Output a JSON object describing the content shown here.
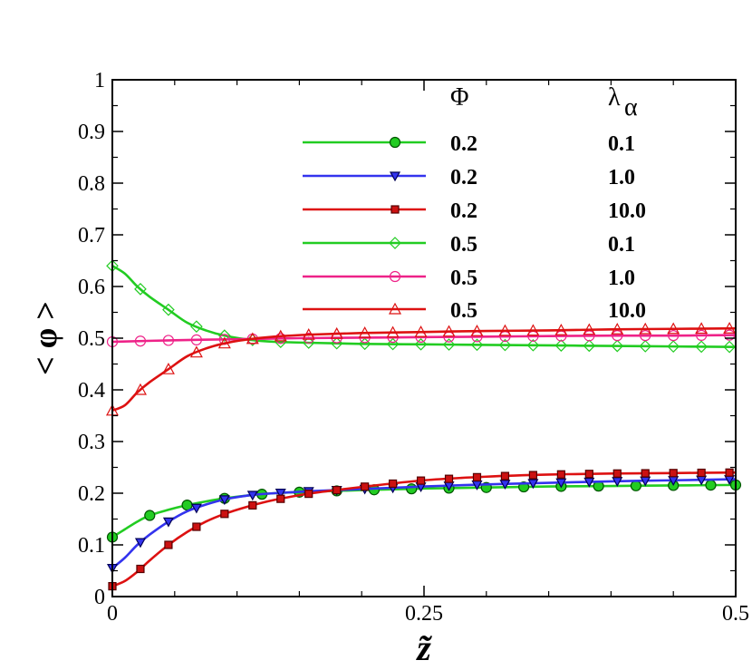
{
  "chart_data": {
    "type": "line",
    "title": "",
    "xlabel": "z̃",
    "ylabel": "< φ >",
    "xlim": [
      0,
      0.5
    ],
    "ylim": [
      0,
      1
    ],
    "xticks": [
      0,
      0.25,
      0.5
    ],
    "xtick_labels": [
      "0",
      "0.25",
      "0.5"
    ],
    "yticks": [
      0,
      0.1,
      0.2,
      0.3,
      0.4,
      0.5,
      0.6,
      0.7,
      0.8,
      0.9,
      1
    ],
    "ytick_labels": [
      "0",
      "0.1",
      "0.2",
      "0.3",
      "0.4",
      "0.5",
      "0.6",
      "0.7",
      "0.8",
      "0.9",
      "1"
    ],
    "legend": {
      "position": "top-right",
      "header_phi": "Φ",
      "header_lambda": "λ",
      "header_lambda_sub": "α"
    },
    "series": [
      {
        "name": "Φ=0.2, λα=0.1",
        "phi": "0.2",
        "lambda": "0.1",
        "color": "#22cc22",
        "marker": "circle",
        "marker_fill": "#22cc22",
        "marker_stroke": "#005500",
        "x": [
          0,
          0.01,
          0.02,
          0.03,
          0.045,
          0.06,
          0.075,
          0.09,
          0.11,
          0.13,
          0.16,
          0.2,
          0.25,
          0.3,
          0.35,
          0.4,
          0.45,
          0.5
        ],
        "y": [
          0.115,
          0.13,
          0.145,
          0.157,
          0.168,
          0.177,
          0.184,
          0.19,
          0.196,
          0.2,
          0.203,
          0.206,
          0.209,
          0.211,
          0.213,
          0.214,
          0.215,
          0.216
        ],
        "marker_x": [
          0,
          0.03,
          0.06,
          0.09,
          0.12,
          0.15,
          0.18,
          0.21,
          0.24,
          0.27,
          0.3,
          0.33,
          0.36,
          0.39,
          0.42,
          0.45,
          0.48,
          0.5
        ]
      },
      {
        "name": "Φ=0.2, λα=1.0",
        "phi": "0.2",
        "lambda": "1.0",
        "color": "#3333ee",
        "marker": "triangle-down",
        "marker_fill": "#3333ee",
        "marker_stroke": "#000055",
        "x": [
          0,
          0.01,
          0.02,
          0.03,
          0.045,
          0.06,
          0.075,
          0.09,
          0.11,
          0.13,
          0.16,
          0.2,
          0.25,
          0.3,
          0.35,
          0.4,
          0.45,
          0.5
        ],
        "y": [
          0.055,
          0.075,
          0.1,
          0.12,
          0.145,
          0.165,
          0.178,
          0.188,
          0.196,
          0.2,
          0.204,
          0.208,
          0.213,
          0.217,
          0.22,
          0.223,
          0.225,
          0.227
        ],
        "marker_x": [
          0,
          0.0225,
          0.045,
          0.0675,
          0.09,
          0.1125,
          0.135,
          0.1575,
          0.18,
          0.2025,
          0.225,
          0.2475,
          0.27,
          0.2925,
          0.315,
          0.3375,
          0.36,
          0.3825,
          0.405,
          0.4275,
          0.45,
          0.4725,
          0.495
        ]
      },
      {
        "name": "Φ=0.2, λα=10.0",
        "phi": "0.2",
        "lambda": "10.0",
        "color": "#dd1111",
        "marker": "square",
        "marker_fill": "#cc1111",
        "marker_stroke": "#550000",
        "x": [
          0,
          0.01,
          0.02,
          0.03,
          0.045,
          0.06,
          0.075,
          0.09,
          0.11,
          0.13,
          0.16,
          0.2,
          0.25,
          0.3,
          0.35,
          0.4,
          0.45,
          0.5
        ],
        "y": [
          0.02,
          0.03,
          0.048,
          0.07,
          0.1,
          0.125,
          0.145,
          0.16,
          0.175,
          0.187,
          0.2,
          0.212,
          0.225,
          0.232,
          0.236,
          0.238,
          0.239,
          0.24
        ],
        "marker_x": [
          0,
          0.0225,
          0.045,
          0.0675,
          0.09,
          0.1125,
          0.135,
          0.1575,
          0.18,
          0.2025,
          0.225,
          0.2475,
          0.27,
          0.2925,
          0.315,
          0.3375,
          0.36,
          0.3825,
          0.405,
          0.4275,
          0.45,
          0.4725,
          0.495
        ]
      },
      {
        "name": "Φ=0.5, λα=0.1",
        "phi": "0.5",
        "lambda": "0.1",
        "color": "#22cc22",
        "marker": "diamond",
        "marker_fill": "none",
        "marker_stroke": "#22cc22",
        "x": [
          0,
          0.01,
          0.02,
          0.03,
          0.045,
          0.06,
          0.075,
          0.09,
          0.11,
          0.13,
          0.16,
          0.2,
          0.25,
          0.3,
          0.35,
          0.4,
          0.45,
          0.5
        ],
        "y": [
          0.64,
          0.625,
          0.6,
          0.58,
          0.555,
          0.53,
          0.515,
          0.505,
          0.497,
          0.493,
          0.491,
          0.489,
          0.488,
          0.487,
          0.486,
          0.485,
          0.484,
          0.483
        ],
        "marker_x": [
          0,
          0.0225,
          0.045,
          0.0675,
          0.09,
          0.1125,
          0.135,
          0.1575,
          0.18,
          0.2025,
          0.225,
          0.2475,
          0.27,
          0.2925,
          0.315,
          0.3375,
          0.36,
          0.3825,
          0.405,
          0.4275,
          0.45,
          0.4725,
          0.495
        ]
      },
      {
        "name": "Φ=0.5, λα=1.0",
        "phi": "0.5",
        "lambda": "1.0",
        "color": "#ee2288",
        "marker": "circle",
        "marker_fill": "none",
        "marker_stroke": "#ee2288",
        "x": [
          0,
          0.05,
          0.1,
          0.15,
          0.2,
          0.25,
          0.3,
          0.35,
          0.4,
          0.45,
          0.5
        ],
        "y": [
          0.493,
          0.496,
          0.498,
          0.5,
          0.501,
          0.502,
          0.503,
          0.504,
          0.505,
          0.505,
          0.506
        ],
        "marker_x": [
          0,
          0.0225,
          0.045,
          0.0675,
          0.09,
          0.1125,
          0.135,
          0.1575,
          0.18,
          0.2025,
          0.225,
          0.2475,
          0.27,
          0.2925,
          0.315,
          0.3375,
          0.36,
          0.3825,
          0.405,
          0.4275,
          0.45,
          0.4725,
          0.495
        ]
      },
      {
        "name": "Φ=0.5, λα=10.0",
        "phi": "0.5",
        "lambda": "10.0",
        "color": "#dd1111",
        "marker": "triangle-up",
        "marker_fill": "none",
        "marker_stroke": "#dd1111",
        "x": [
          0,
          0.01,
          0.02,
          0.03,
          0.045,
          0.06,
          0.075,
          0.09,
          0.11,
          0.13,
          0.16,
          0.2,
          0.25,
          0.3,
          0.35,
          0.4,
          0.45,
          0.5
        ],
        "y": [
          0.36,
          0.37,
          0.395,
          0.415,
          0.44,
          0.465,
          0.48,
          0.49,
          0.498,
          0.503,
          0.507,
          0.51,
          0.512,
          0.514,
          0.515,
          0.517,
          0.518,
          0.519
        ],
        "marker_x": [
          0,
          0.0225,
          0.045,
          0.0675,
          0.09,
          0.1125,
          0.135,
          0.1575,
          0.18,
          0.2025,
          0.225,
          0.2475,
          0.27,
          0.2925,
          0.315,
          0.3375,
          0.36,
          0.3825,
          0.405,
          0.4275,
          0.45,
          0.4725,
          0.495
        ]
      }
    ]
  }
}
